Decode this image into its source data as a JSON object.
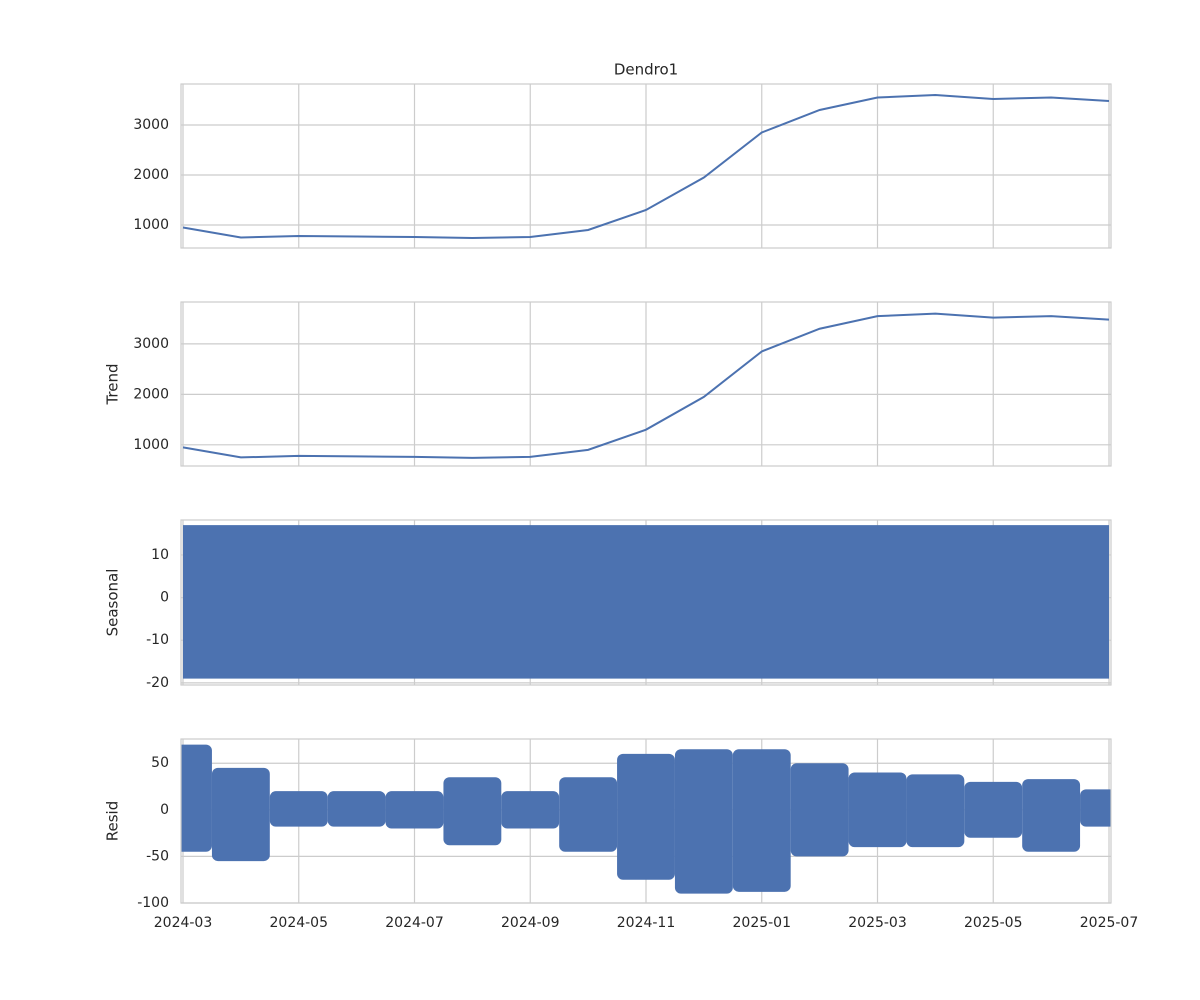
{
  "chart_data": [
    {
      "type": "line",
      "title": "Dendro1",
      "color": "#4c72b0",
      "grid": true,
      "values": [
        950,
        750,
        780,
        770,
        760,
        740,
        760,
        900,
        1300,
        1950,
        2850,
        3300,
        3550,
        3600,
        3520,
        3550,
        3480
      ],
      "ylim": [
        540,
        3820
      ],
      "yticks": [
        1000,
        2000,
        3000
      ]
    },
    {
      "type": "line",
      "ylabel": "Trend",
      "color": "#4c72b0",
      "grid": true,
      "values": [
        950,
        750,
        780,
        770,
        760,
        740,
        760,
        900,
        1300,
        1950,
        2850,
        3300,
        3550,
        3600,
        3520,
        3550,
        3480
      ],
      "ylim": [
        580,
        3830
      ],
      "yticks": [
        1000,
        2000,
        3000
      ]
    },
    {
      "type": "band",
      "ylabel": "Seasonal",
      "color": "#4c72b0",
      "grid": true,
      "low": -19,
      "high": 17,
      "ylim": [
        -20.5,
        18.2
      ],
      "yticks": [
        -20,
        -10,
        0,
        10
      ]
    },
    {
      "type": "range",
      "ylabel": "Resid",
      "color": "#4c72b0",
      "grid": true,
      "categories": [
        "2024-03",
        "2024-04",
        "2024-05",
        "2024-06",
        "2024-07",
        "2024-08",
        "2024-09",
        "2024-10",
        "2024-11",
        "2024-12",
        "2025-01",
        "2025-02",
        "2025-03",
        "2025-04",
        "2025-05",
        "2025-06",
        "2025-07"
      ],
      "low": [
        -45,
        -55,
        -18,
        -18,
        -20,
        -38,
        -20,
        -45,
        -75,
        -90,
        -88,
        -50,
        -40,
        -40,
        -30,
        -45,
        -18
      ],
      "high": [
        70,
        45,
        20,
        20,
        20,
        35,
        20,
        35,
        60,
        65,
        65,
        50,
        40,
        38,
        30,
        33,
        22
      ],
      "ylim": [
        -100,
        76
      ],
      "yticks": [
        -100,
        -50,
        0,
        50
      ]
    }
  ]
}
